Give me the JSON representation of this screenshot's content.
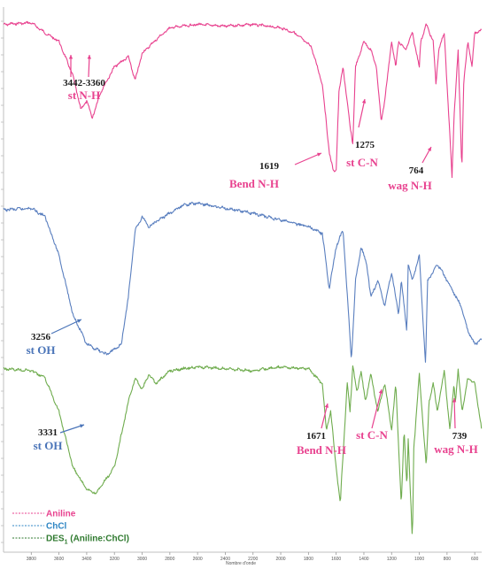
{
  "chart_data": {
    "type": "line",
    "title": "",
    "xlabel": "Nombre d'onde",
    "ylabel": "",
    "xlim": [
      4000,
      550
    ],
    "x_ticks": [
      "3800",
      "3600",
      "3400",
      "3200",
      "3000",
      "2800",
      "2600",
      "2400",
      "2200",
      "2000",
      "1800",
      "1600",
      "1400",
      "1200",
      "1000",
      "800",
      "600"
    ],
    "grid": false,
    "legend_placement": "bottom-left",
    "series": [
      {
        "name": "Aniline",
        "color": "#e8428f",
        "points": [
          [
            4000,
            0.95
          ],
          [
            3800,
            0.96
          ],
          [
            3700,
            0.9
          ],
          [
            3600,
            0.85
          ],
          [
            3500,
            0.65
          ],
          [
            3442,
            0.45
          ],
          [
            3400,
            0.5
          ],
          [
            3360,
            0.4
          ],
          [
            3300,
            0.55
          ],
          [
            3200,
            0.7
          ],
          [
            3100,
            0.76
          ],
          [
            3050,
            0.62
          ],
          [
            3000,
            0.78
          ],
          [
            2900,
            0.86
          ],
          [
            2800,
            0.93
          ],
          [
            2600,
            0.95
          ],
          [
            2400,
            0.94
          ],
          [
            2200,
            0.95
          ],
          [
            2000,
            0.93
          ],
          [
            1900,
            0.9
          ],
          [
            1780,
            0.82
          ],
          [
            1700,
            0.6
          ],
          [
            1650,
            0.2
          ],
          [
            1619,
            0.08
          ],
          [
            1600,
            0.1
          ],
          [
            1580,
            0.55
          ],
          [
            1550,
            0.7
          ],
          [
            1500,
            0.35
          ],
          [
            1480,
            0.25
          ],
          [
            1460,
            0.7
          ],
          [
            1400,
            0.85
          ],
          [
            1350,
            0.8
          ],
          [
            1310,
            0.7
          ],
          [
            1275,
            0.38
          ],
          [
            1250,
            0.5
          ],
          [
            1200,
            0.85
          ],
          [
            1170,
            0.7
          ],
          [
            1150,
            0.85
          ],
          [
            1100,
            0.8
          ],
          [
            1050,
            0.9
          ],
          [
            1000,
            0.7
          ],
          [
            990,
            0.85
          ],
          [
            950,
            0.95
          ],
          [
            900,
            0.85
          ],
          [
            880,
            0.6
          ],
          [
            860,
            0.8
          ],
          [
            820,
            0.9
          ],
          [
            780,
            0.3
          ],
          [
            764,
            0.05
          ],
          [
            750,
            0.4
          ],
          [
            720,
            0.8
          ],
          [
            693,
            0.1
          ],
          [
            680,
            0.6
          ],
          [
            650,
            0.85
          ],
          [
            620,
            0.7
          ],
          [
            600,
            0.9
          ],
          [
            550,
            0.92
          ]
        ]
      },
      {
        "name": "ChCl",
        "color": "#5a7fbf",
        "points": [
          [
            4000,
            0.92
          ],
          [
            3800,
            0.93
          ],
          [
            3700,
            0.88
          ],
          [
            3600,
            0.65
          ],
          [
            3500,
            0.3
          ],
          [
            3400,
            0.12
          ],
          [
            3256,
            0.06
          ],
          [
            3150,
            0.12
          ],
          [
            3100,
            0.4
          ],
          [
            3050,
            0.8
          ],
          [
            3000,
            0.88
          ],
          [
            2950,
            0.82
          ],
          [
            2900,
            0.85
          ],
          [
            2800,
            0.9
          ],
          [
            2700,
            0.95
          ],
          [
            2600,
            0.96
          ],
          [
            2400,
            0.93
          ],
          [
            2200,
            0.9
          ],
          [
            2000,
            0.86
          ],
          [
            1900,
            0.84
          ],
          [
            1800,
            0.82
          ],
          [
            1700,
            0.78
          ],
          [
            1650,
            0.45
          ],
          [
            1600,
            0.7
          ],
          [
            1550,
            0.8
          ],
          [
            1490,
            0.03
          ],
          [
            1460,
            0.5
          ],
          [
            1420,
            0.7
          ],
          [
            1380,
            0.6
          ],
          [
            1350,
            0.4
          ],
          [
            1300,
            0.5
          ],
          [
            1250,
            0.35
          ],
          [
            1200,
            0.55
          ],
          [
            1150,
            0.3
          ],
          [
            1130,
            0.5
          ],
          [
            1090,
            0.2
          ],
          [
            1080,
            0.6
          ],
          [
            1050,
            0.5
          ],
          [
            1000,
            0.65
          ],
          [
            955,
            0.0
          ],
          [
            940,
            0.5
          ],
          [
            900,
            0.55
          ],
          [
            870,
            0.6
          ],
          [
            800,
            0.5
          ],
          [
            700,
            0.35
          ],
          [
            650,
            0.2
          ],
          [
            600,
            0.12
          ],
          [
            550,
            0.15
          ]
        ]
      },
      {
        "name": "DES1 (Aniline:ChCl)",
        "color": "#6fac4e",
        "points": [
          [
            4000,
            0.93
          ],
          [
            3800,
            0.92
          ],
          [
            3700,
            0.88
          ],
          [
            3600,
            0.7
          ],
          [
            3500,
            0.4
          ],
          [
            3400,
            0.28
          ],
          [
            3331,
            0.26
          ],
          [
            3200,
            0.4
          ],
          [
            3100,
            0.75
          ],
          [
            3050,
            0.88
          ],
          [
            3000,
            0.82
          ],
          [
            2950,
            0.9
          ],
          [
            2900,
            0.85
          ],
          [
            2800,
            0.92
          ],
          [
            2600,
            0.94
          ],
          [
            2400,
            0.93
          ],
          [
            2200,
            0.92
          ],
          [
            2000,
            0.94
          ],
          [
            1800,
            0.93
          ],
          [
            1700,
            0.85
          ],
          [
            1671,
            0.6
          ],
          [
            1640,
            0.7
          ],
          [
            1600,
            0.4
          ],
          [
            1570,
            0.2
          ],
          [
            1560,
            0.35
          ],
          [
            1520,
            0.85
          ],
          [
            1500,
            0.7
          ],
          [
            1480,
            0.95
          ],
          [
            1450,
            0.8
          ],
          [
            1420,
            0.92
          ],
          [
            1390,
            0.75
          ],
          [
            1350,
            0.9
          ],
          [
            1300,
            0.7
          ],
          [
            1250,
            0.85
          ],
          [
            1200,
            0.6
          ],
          [
            1170,
            0.85
          ],
          [
            1130,
            0.2
          ],
          [
            1110,
            0.6
          ],
          [
            1090,
            0.3
          ],
          [
            1080,
            0.55
          ],
          [
            1050,
            0.0
          ],
          [
            1040,
            0.5
          ],
          [
            1000,
            0.9
          ],
          [
            950,
            0.4
          ],
          [
            930,
            0.75
          ],
          [
            900,
            0.85
          ],
          [
            870,
            0.7
          ],
          [
            820,
            0.92
          ],
          [
            780,
            0.6
          ],
          [
            750,
            0.85
          ],
          [
            739,
            0.75
          ],
          [
            720,
            0.92
          ],
          [
            690,
            0.7
          ],
          [
            650,
            0.88
          ],
          [
            600,
            0.85
          ],
          [
            550,
            0.6
          ]
        ]
      }
    ],
    "annotations": [
      {
        "value": "3442-3360",
        "mode": "st N-H"
      },
      {
        "value": "1619",
        "mode": "Bend N-H"
      },
      {
        "value": "1275",
        "mode": "st C-N"
      },
      {
        "value": "764",
        "mode": "wag N-H"
      },
      {
        "value": "3256",
        "mode": "st OH"
      },
      {
        "value": "3331",
        "mode": "st OH"
      },
      {
        "value": "1671",
        "mode": "Bend N-H"
      },
      {
        "value": "",
        "mode": "st C-N"
      },
      {
        "value": "739",
        "mode": "wag N-H"
      }
    ],
    "legend": [
      {
        "label": "Aniline",
        "color": "#e8428f"
      },
      {
        "label": "ChCl",
        "color": "#2f86c4"
      },
      {
        "label": "DES",
        "sub": "1",
        "rest": " (Aniline:ChCl)",
        "color": "#2f7a2f"
      }
    ]
  }
}
